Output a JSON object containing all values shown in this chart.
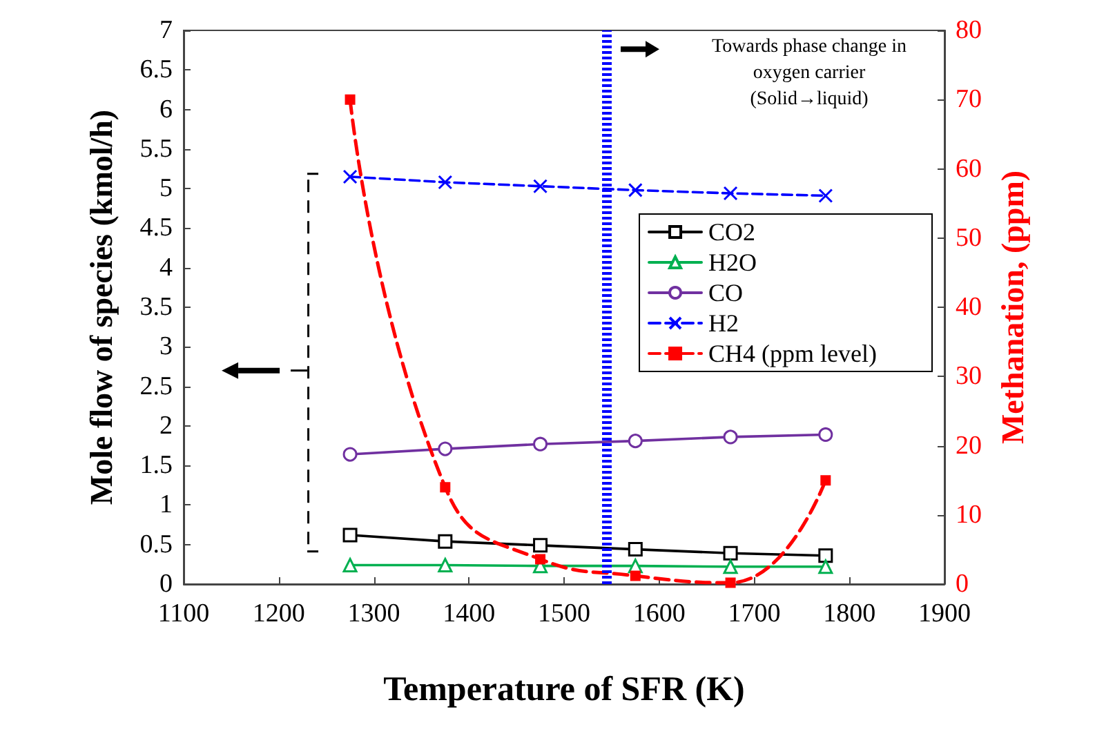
{
  "chart_data": {
    "type": "line",
    "xlabel": "Temperature of SFR (K)",
    "ylabel": "Mole flow of species (kmol/h)",
    "y2label": "Methanation, (ppm)",
    "x": [
      1275,
      1375,
      1475,
      1575,
      1675,
      1775
    ],
    "series": [
      {
        "name": "CO2",
        "color": "#000000",
        "marker": "square",
        "line_style": "solid",
        "values": [
          0.62,
          0.54,
          0.49,
          0.44,
          0.39,
          0.36
        ]
      },
      {
        "name": "H2O",
        "color": "#00b050",
        "marker": "triangle",
        "line_style": "solid",
        "values": [
          0.24,
          0.24,
          0.23,
          0.23,
          0.22,
          0.22
        ]
      },
      {
        "name": "CO",
        "color": "#7030a0",
        "marker": "circle",
        "line_style": "solid",
        "values": [
          1.64,
          1.71,
          1.77,
          1.81,
          1.86,
          1.89
        ]
      },
      {
        "name": "H2",
        "color": "#0000ff",
        "marker": "cross",
        "line_style": "dashed",
        "values": [
          5.15,
          5.08,
          5.03,
          4.98,
          4.94,
          4.91
        ]
      },
      {
        "name": "CH4 (ppm level)",
        "color": "#ff0000",
        "marker": "square",
        "line_style": "dashed",
        "axis": "y2",
        "values": [
          70,
          14,
          3.6,
          1.2,
          0.2,
          15
        ]
      }
    ],
    "xlim": [
      1100,
      1900
    ],
    "xticks": [
      1100,
      1200,
      1300,
      1400,
      1500,
      1600,
      1700,
      1800,
      1900
    ],
    "ylim": [
      0,
      7
    ],
    "yticks": [
      0,
      0.5,
      1,
      1.5,
      2,
      2.5,
      3,
      3.5,
      4,
      4.5,
      5,
      5.5,
      6,
      6.5,
      7
    ],
    "y2lim": [
      0,
      80
    ],
    "y2ticks": [
      0,
      10,
      20,
      30,
      40,
      50,
      60,
      70,
      80
    ],
    "ref_lines": [
      {
        "axis": "x",
        "value": 1545,
        "color": "#0000ff"
      }
    ],
    "annotations": [
      "Towards phase change in\noxygen carrier\n(Solid→liquid)"
    ],
    "legend": "right",
    "grid": false
  }
}
